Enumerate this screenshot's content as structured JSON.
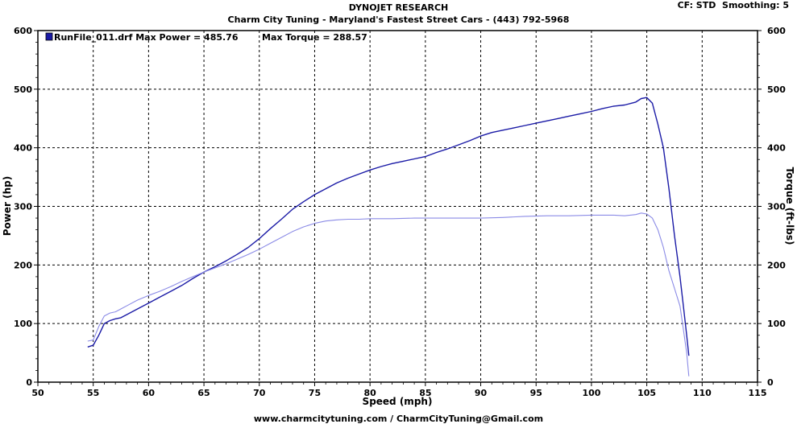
{
  "header": {
    "title": "DYNOJET RESEARCH",
    "subtitle": "Charm City Tuning - Maryland's Fastest Street Cars - (443) 792-5968",
    "cf_label": "CF: STD",
    "smoothing_label": "Smoothing: 5"
  },
  "footer": {
    "text": "www.charmcitytuning.com / CharmCityTuning@Gmail.com"
  },
  "legend": {
    "run_label": "RunFile_011.drf Max Power = 485.76",
    "torque_label": "Max Torque = 288.57"
  },
  "colors": {
    "power": "#1a1aa6",
    "torque": "#8b8be6",
    "grid": "#000000"
  },
  "chart_data": {
    "type": "line",
    "xlabel": "Speed (mph)",
    "ylabel": "Power (hp)",
    "ylabel_right": "Torque (ft-lbs)",
    "xlim": [
      50,
      115
    ],
    "ylim": [
      0,
      600
    ],
    "ylim_right": [
      0,
      600
    ],
    "xticks": [
      50,
      55,
      60,
      65,
      70,
      75,
      80,
      85,
      90,
      95,
      100,
      105,
      110,
      115
    ],
    "yticks": [
      0,
      100,
      200,
      300,
      400,
      500,
      600
    ],
    "grid": true,
    "legend_position": "top-left",
    "series": [
      {
        "name": "Power",
        "axis": "left",
        "x": [
          54.5,
          55,
          55.5,
          56,
          56.5,
          57,
          57.5,
          58,
          59,
          60,
          61,
          62,
          63,
          64,
          65,
          66,
          67,
          68,
          69,
          70,
          71,
          72,
          73,
          74,
          75,
          76,
          77,
          78,
          79,
          80,
          81,
          82,
          83,
          84,
          85,
          86,
          87,
          88,
          89,
          90,
          91,
          92,
          93,
          94,
          95,
          96,
          97,
          98,
          99,
          100,
          101,
          102,
          103,
          104,
          104.5,
          105,
          105.5,
          106,
          106.5,
          107,
          107.5,
          108,
          108.3,
          108.6,
          108.8
        ],
        "y": [
          60,
          63,
          80,
          100,
          105,
          108,
          110,
          115,
          125,
          135,
          145,
          155,
          165,
          177,
          188,
          197,
          207,
          218,
          230,
          245,
          262,
          278,
          295,
          308,
          320,
          330,
          340,
          348,
          355,
          362,
          368,
          373,
          377,
          381,
          385,
          392,
          398,
          405,
          412,
          420,
          426,
          430,
          434,
          438,
          442,
          446,
          450,
          454,
          458,
          462,
          467,
          471,
          473,
          478,
          484,
          485.76,
          476,
          440,
          400,
          330,
          250,
          180,
          130,
          80,
          45
        ]
      },
      {
        "name": "Torque",
        "axis": "right",
        "x": [
          54.5,
          55,
          55.5,
          56,
          56.5,
          57,
          57.5,
          58,
          59,
          60,
          61,
          62,
          63,
          64,
          65,
          66,
          67,
          68,
          69,
          70,
          71,
          72,
          73,
          74,
          75,
          76,
          77,
          78,
          79,
          80,
          82,
          84,
          86,
          88,
          90,
          92,
          94,
          96,
          98,
          100,
          101,
          102,
          103,
          104,
          104.5,
          105,
          105.5,
          106,
          106.5,
          107,
          107.5,
          108,
          108.3,
          108.6,
          108.8
        ],
        "y": [
          70,
          72,
          95,
          113,
          118,
          120,
          125,
          130,
          140,
          148,
          155,
          163,
          172,
          180,
          188,
          195,
          202,
          210,
          218,
          227,
          237,
          247,
          257,
          265,
          271,
          275,
          277,
          278,
          278,
          279,
          279,
          280,
          280,
          280,
          280,
          281,
          283,
          284,
          284,
          285,
          285,
          285,
          284,
          286,
          288.57,
          287,
          280,
          260,
          230,
          190,
          160,
          130,
          90,
          50,
          10
        ]
      }
    ]
  }
}
